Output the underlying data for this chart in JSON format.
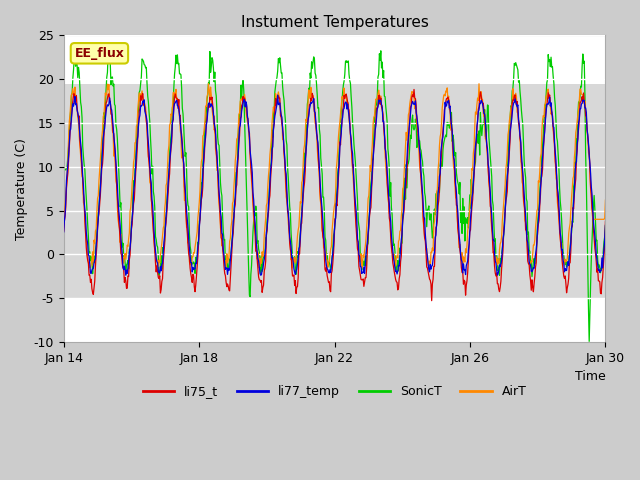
{
  "title": "Instument Temperatures",
  "xlabel": "Time",
  "ylabel": "Temperature (C)",
  "ylim": [
    -10,
    25
  ],
  "x_ticks_days": [
    14,
    18,
    22,
    26,
    30
  ],
  "x_tick_labels": [
    "Jan 14",
    "Jan 18",
    "Jan 22",
    "Jan 26",
    "Jan 30"
  ],
  "y_ticks": [
    -10,
    -5,
    0,
    5,
    10,
    15,
    20,
    25
  ],
  "shade_band_low": -5,
  "shade_band_high": 19.5,
  "colors": {
    "li75_t": "#dd0000",
    "li77_temp": "#0000dd",
    "SonicT": "#00cc00",
    "AirT": "#ff8800"
  },
  "annotation_text": "EE_flux",
  "annotation_color": "#8b0000",
  "annotation_bg": "#ffffaa",
  "annotation_border": "#cccc00",
  "bg_color": "#ffffff",
  "fig_bg_color": "#cccccc",
  "shade_color": "#d8d8d8"
}
